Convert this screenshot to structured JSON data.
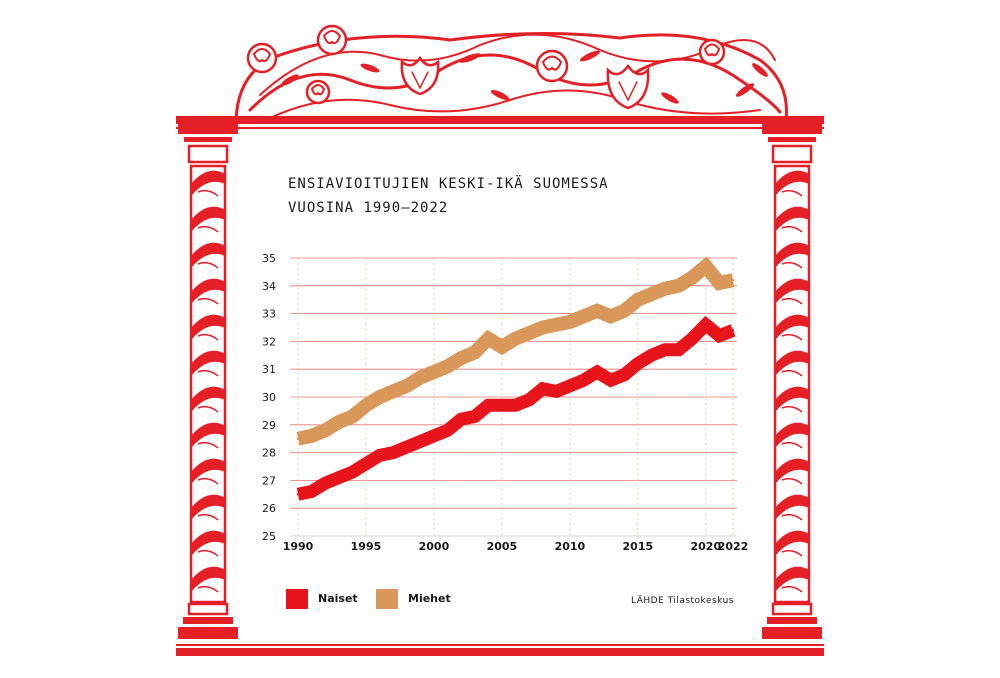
{
  "colors": {
    "frame_red": "#e41f26",
    "panel_bg": "#ffffff",
    "grid_red": "#e8766f",
    "naiset": "#e8141c",
    "miehet": "#d9975a"
  },
  "title": {
    "line1": "ENSIAVIOITUJIEN KESKI-IKÄ SUOMESSA",
    "line2": "VUOSINA 1990–2022"
  },
  "source": "LÄHDE Tilastokeskus",
  "chart_data": {
    "type": "line",
    "title": "ENSIAVIOITUJIEN KESKI-IKÄ SUOMESSA VUOSINA 1990–2022",
    "xlabel": "",
    "ylabel": "",
    "x": [
      1990,
      1991,
      1992,
      1993,
      1994,
      1995,
      1996,
      1997,
      1998,
      1999,
      2000,
      2001,
      2002,
      2003,
      2004,
      2005,
      2006,
      2007,
      2008,
      2009,
      2010,
      2011,
      2012,
      2013,
      2014,
      2015,
      2016,
      2017,
      2018,
      2019,
      2020,
      2021,
      2022
    ],
    "xlim": [
      1990,
      2022
    ],
    "ylim": [
      25,
      35
    ],
    "x_ticks": [
      "1990",
      "1995",
      "2000",
      "2005",
      "2010",
      "2015",
      "2020",
      "2022"
    ],
    "y_ticks": [
      "25",
      "26",
      "27",
      "28",
      "29",
      "30",
      "31",
      "32",
      "33",
      "34",
      "35"
    ],
    "legend_position": "bottom-left",
    "grid": true,
    "series": [
      {
        "name": "Naiset",
        "color": "#e8141c",
        "values": [
          26.5,
          26.6,
          26.9,
          27.1,
          27.3,
          27.6,
          27.9,
          28.0,
          28.2,
          28.4,
          28.6,
          28.8,
          29.2,
          29.3,
          29.7,
          29.7,
          29.7,
          29.9,
          30.3,
          30.2,
          30.4,
          30.6,
          30.9,
          30.6,
          30.8,
          31.2,
          31.5,
          31.7,
          31.7,
          32.1,
          32.6,
          32.2,
          32.4
        ]
      },
      {
        "name": "Miehet",
        "color": "#d9975a",
        "values": [
          28.5,
          28.6,
          28.8,
          29.1,
          29.3,
          29.7,
          30.0,
          30.2,
          30.4,
          30.7,
          30.9,
          31.1,
          31.4,
          31.6,
          32.1,
          31.8,
          32.1,
          32.3,
          32.5,
          32.6,
          32.7,
          32.9,
          33.1,
          32.9,
          33.1,
          33.5,
          33.7,
          33.9,
          34.0,
          34.3,
          34.7,
          34.1,
          34.2
        ]
      }
    ]
  }
}
